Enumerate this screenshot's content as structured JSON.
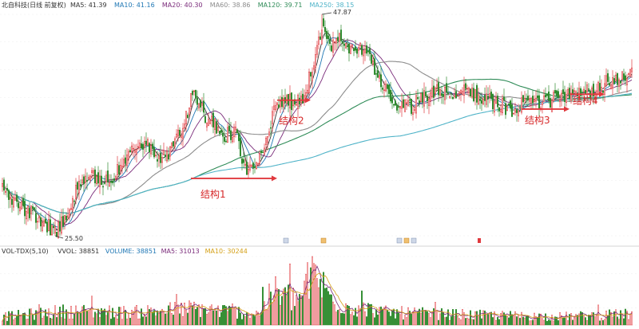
{
  "header": {
    "title": "北自科技(日线 前复权)",
    "ma": [
      {
        "label": "MA5: 41.39",
        "color": "#333333"
      },
      {
        "label": "MA10: 41.16",
        "color": "#1f77b4"
      },
      {
        "label": "MA20: 40.30",
        "color": "#7a2b7a"
      },
      {
        "label": "MA60: 38.86",
        "color": "#8c8c8c"
      },
      {
        "label": "MA120: 39.71",
        "color": "#2e8b57"
      },
      {
        "label": "MA250: 38.15",
        "color": "#4fb3c8"
      }
    ]
  },
  "volume_header": {
    "title": "VOL-TDX(5,10)",
    "items": [
      {
        "label": "VVOL: 38851",
        "color": "#333333"
      },
      {
        "label": "VOLUME: 38851",
        "color": "#1f77b4"
      },
      {
        "label": "MA5: 31013",
        "color": "#7a2b7a"
      },
      {
        "label": "MA10: 30244",
        "color": "#d4a017"
      }
    ]
  },
  "colors": {
    "up": "#e0393e",
    "down": "#2e8b2e",
    "arrow": "#e0393e"
  },
  "annotations": {
    "high_label": "47.87",
    "low_label": "25.50",
    "structures": [
      {
        "label": "结构1",
        "x": 118,
        "x_end": 172,
        "price": 31.3
      },
      {
        "label": "结构2",
        "x": 172,
        "x_end": 193,
        "price": 39.2
      },
      {
        "label": "结构3",
        "x": 325,
        "x_end": 355,
        "price": 38.3
      },
      {
        "label": "结构4",
        "x": 355,
        "x_end": 377,
        "price": 39.8
      }
    ]
  },
  "chart_data": {
    "type": "candlestick",
    "title": "北自科技(日线 前复权)",
    "n_bars": 395,
    "y_range": [
      25.5,
      47.87
    ],
    "price_keypoints": [
      [
        0,
        30.2
      ],
      [
        10,
        28.6
      ],
      [
        20,
        27.6
      ],
      [
        33,
        25.9
      ],
      [
        38,
        26.8
      ],
      [
        47,
        30.2
      ],
      [
        56,
        31.4
      ],
      [
        64,
        31.0
      ],
      [
        72,
        32.0
      ],
      [
        80,
        33.8
      ],
      [
        88,
        34.7
      ],
      [
        96,
        34.0
      ],
      [
        100,
        33.3
      ],
      [
        106,
        34.3
      ],
      [
        114,
        36.8
      ],
      [
        120,
        40.3
      ],
      [
        126,
        37.8
      ],
      [
        132,
        36.7
      ],
      [
        140,
        35.6
      ],
      [
        146,
        35.9
      ],
      [
        152,
        32.4
      ],
      [
        158,
        31.9
      ],
      [
        164,
        34.3
      ],
      [
        170,
        38.0
      ],
      [
        176,
        39.2
      ],
      [
        182,
        39.0
      ],
      [
        188,
        39.3
      ],
      [
        194,
        42.4
      ],
      [
        200,
        46.5
      ],
      [
        206,
        44.9
      ],
      [
        212,
        45.9
      ],
      [
        218,
        44.3
      ],
      [
        224,
        44.6
      ],
      [
        230,
        43.5
      ],
      [
        236,
        40.9
      ],
      [
        242,
        39.8
      ],
      [
        248,
        38.3
      ],
      [
        256,
        38.6
      ],
      [
        264,
        39.4
      ],
      [
        272,
        40.1
      ],
      [
        280,
        39.6
      ],
      [
        288,
        40.2
      ],
      [
        296,
        39.7
      ],
      [
        304,
        39.3
      ],
      [
        312,
        38.7
      ],
      [
        318,
        38.1
      ],
      [
        324,
        38.6
      ],
      [
        330,
        38.9
      ],
      [
        338,
        38.8
      ],
      [
        346,
        39.5
      ],
      [
        354,
        39.8
      ],
      [
        362,
        40.2
      ],
      [
        370,
        39.9
      ],
      [
        378,
        40.9
      ],
      [
        386,
        41.4
      ],
      [
        394,
        42.0
      ]
    ],
    "volume_range": [
      0,
      200000
    ],
    "volume_keypoints": [
      [
        0,
        30000
      ],
      [
        40,
        50000
      ],
      [
        80,
        45000
      ],
      [
        120,
        60000
      ],
      [
        160,
        40000
      ],
      [
        170,
        120000
      ],
      [
        185,
        90000
      ],
      [
        195,
        190000
      ],
      [
        205,
        100000
      ],
      [
        215,
        70000
      ],
      [
        240,
        45000
      ],
      [
        300,
        35000
      ],
      [
        350,
        30000
      ],
      [
        394,
        38851
      ]
    ],
    "moving_averages": [
      "MA5",
      "MA10",
      "MA20",
      "MA60",
      "MA120",
      "MA250"
    ]
  }
}
